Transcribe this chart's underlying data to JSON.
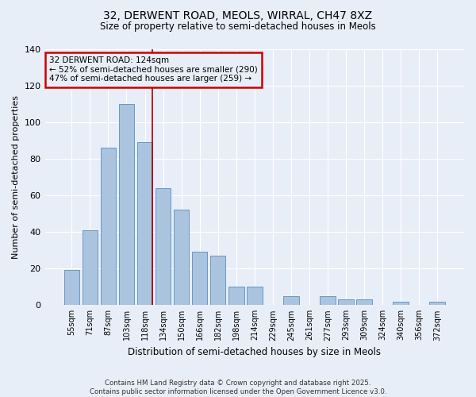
{
  "title_line1": "32, DERWENT ROAD, MEOLS, WIRRAL, CH47 8XZ",
  "title_line2": "Size of property relative to semi-detached houses in Meols",
  "xlabel": "Distribution of semi-detached houses by size in Meols",
  "ylabel": "Number of semi-detached properties",
  "categories": [
    "55sqm",
    "71sqm",
    "87sqm",
    "103sqm",
    "118sqm",
    "134sqm",
    "150sqm",
    "166sqm",
    "182sqm",
    "198sqm",
    "214sqm",
    "229sqm",
    "245sqm",
    "261sqm",
    "277sqm",
    "293sqm",
    "309sqm",
    "324sqm",
    "340sqm",
    "356sqm",
    "372sqm"
  ],
  "values": [
    19,
    41,
    86,
    110,
    89,
    64,
    52,
    29,
    27,
    10,
    10,
    0,
    5,
    0,
    5,
    3,
    3,
    0,
    2,
    0,
    2
  ],
  "bar_color": "#aac4e0",
  "bar_edge_color": "#5b8db8",
  "pct_smaller": 52,
  "pct_larger": 47,
  "n_smaller": 290,
  "n_larger": 259,
  "vline_color": "#aa0000",
  "annotation_box_edge_color": "#cc0000",
  "background_color": "#e8eef8",
  "grid_color": "#ffffff",
  "ylim": [
    0,
    140
  ],
  "yticks": [
    0,
    20,
    40,
    60,
    80,
    100,
    120,
    140
  ],
  "footer_line1": "Contains HM Land Registry data © Crown copyright and database right 2025.",
  "footer_line2": "Contains public sector information licensed under the Open Government Licence v3.0."
}
